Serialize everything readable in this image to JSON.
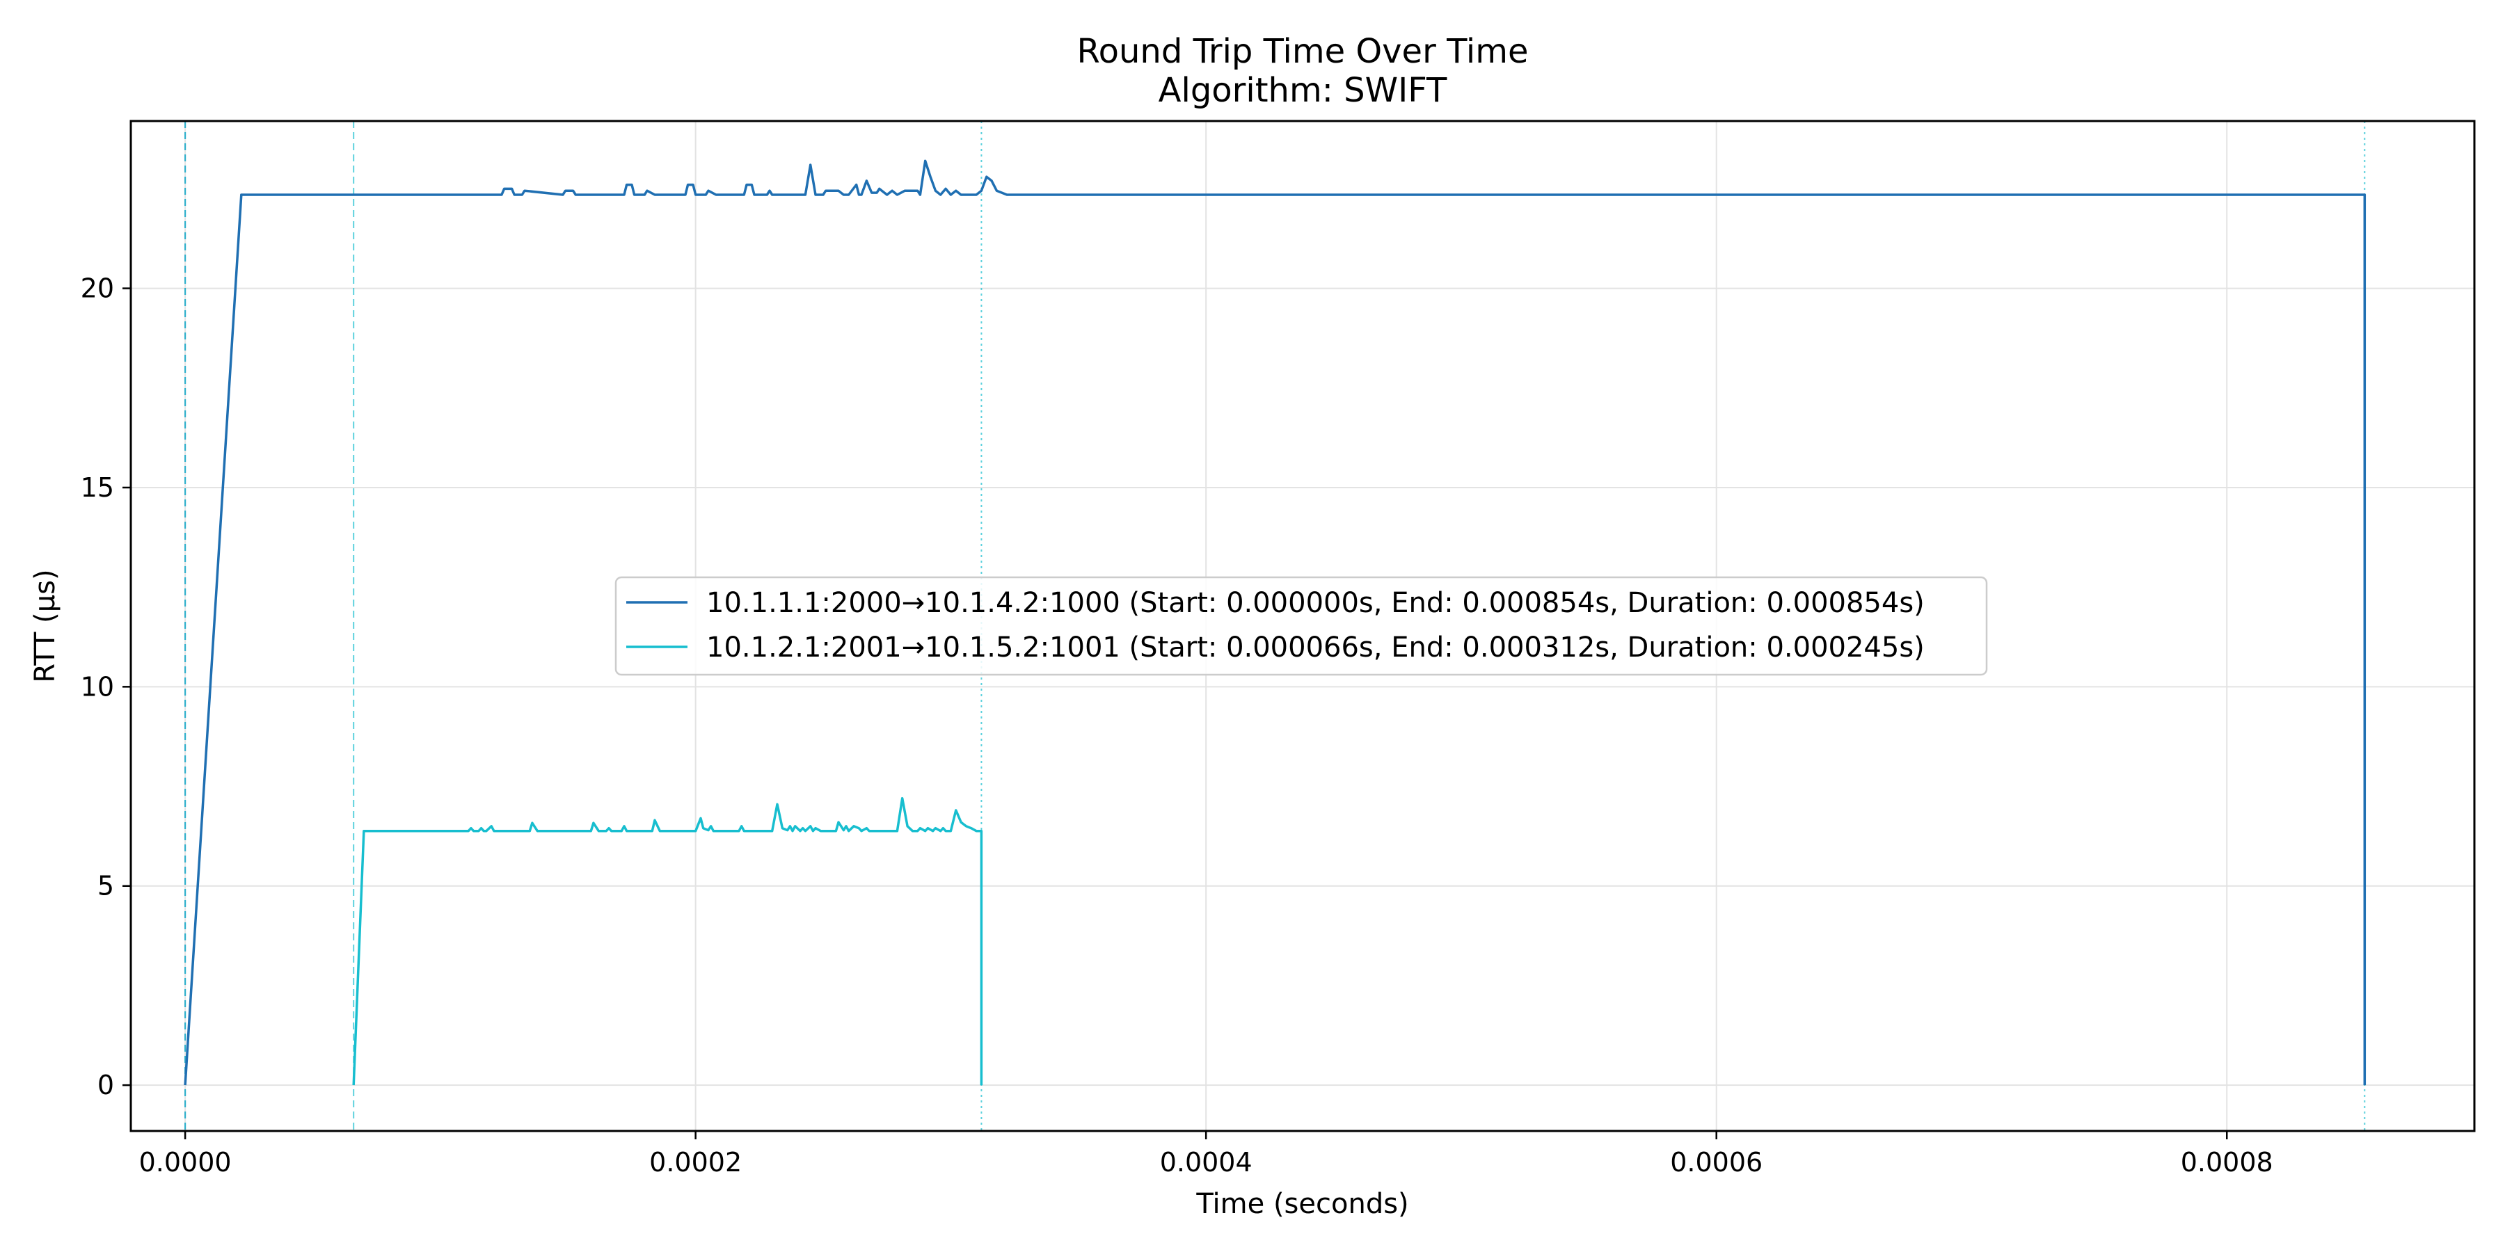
{
  "chart_data": {
    "type": "line",
    "title": "Round Trip Time Over Time",
    "subtitle": "Algorithm: SWIFT",
    "xlabel": "Time (seconds)",
    "ylabel": "RTT (μs)",
    "xlim": [
      -2.13e-05,
      0.000897
    ],
    "ylim": [
      -1.15,
      24.2
    ],
    "x_ticks": [
      0.0,
      0.0002,
      0.0004,
      0.0006,
      0.0008
    ],
    "x_tick_labels": [
      "0.0000",
      "0.0002",
      "0.0004",
      "0.0006",
      "0.0008"
    ],
    "y_ticks": [
      0,
      5,
      10,
      15,
      20
    ],
    "y_tick_labels": [
      "0",
      "5",
      "10",
      "15",
      "20"
    ],
    "grid": true,
    "legend_position": "center",
    "colors": {
      "flow1": "#1f6fb2",
      "flow2": "#17becf",
      "grid": "#e3e3e3"
    },
    "markers": [
      {
        "x": 0.0,
        "style": "dashed",
        "series": 0
      },
      {
        "x": 0.0,
        "style": "dashed",
        "series": 1
      },
      {
        "x": 6.6e-05,
        "style": "dashed",
        "series": 1
      },
      {
        "x": 0.000312,
        "style": "dotted",
        "series": 1
      },
      {
        "x": 0.000854,
        "style": "dotted",
        "series": 1
      }
    ],
    "series": [
      {
        "name": "10.1.1.1:2000→10.1.4.2:1000 (Start: 0.000000s, End: 0.000854s, Duration: 0.000854s)",
        "color": "#1f6fb2",
        "x": [
          0.0,
          2.2e-05,
          0.000124,
          0.000125,
          0.000128,
          0.000129,
          0.000132,
          0.000133,
          0.000148,
          0.000149,
          0.000152,
          0.000153,
          0.000172,
          0.000173,
          0.000175,
          0.000176,
          0.00018,
          0.000181,
          0.000184,
          0.000196,
          0.000197,
          0.000199,
          0.0002,
          0.000204,
          0.000205,
          0.000208,
          0.000219,
          0.00022,
          0.000222,
          0.000223,
          0.000228,
          0.000229,
          0.00023,
          0.000243,
          0.000245,
          0.000247,
          0.00025,
          0.000251,
          0.000256,
          0.000258,
          0.00026,
          0.000263,
          0.000264,
          0.000265,
          0.000267,
          0.000269,
          0.000271,
          0.000272,
          0.000275,
          0.000277,
          0.000279,
          0.000282,
          0.000287,
          0.000288,
          0.00029,
          0.000292,
          0.000294,
          0.000296,
          0.000298,
          0.0003,
          0.000302,
          0.000304,
          0.000306,
          0.000308,
          0.00031,
          0.000312,
          0.000314,
          0.000316,
          0.000318,
          0.00032,
          0.000322,
          0.000324,
          0.000854,
          0.000854
        ],
        "y": [
          0.0,
          22.35,
          22.35,
          22.5,
          22.5,
          22.35,
          22.35,
          22.45,
          22.35,
          22.45,
          22.45,
          22.35,
          22.35,
          22.6,
          22.6,
          22.35,
          22.35,
          22.45,
          22.35,
          22.35,
          22.6,
          22.6,
          22.35,
          22.35,
          22.45,
          22.35,
          22.35,
          22.6,
          22.6,
          22.35,
          22.35,
          22.45,
          22.35,
          22.35,
          23.1,
          22.35,
          22.35,
          22.45,
          22.45,
          22.35,
          22.35,
          22.6,
          22.35,
          22.35,
          22.7,
          22.4,
          22.4,
          22.5,
          22.35,
          22.45,
          22.35,
          22.45,
          22.45,
          22.35,
          23.2,
          22.8,
          22.45,
          22.35,
          22.5,
          22.35,
          22.45,
          22.35,
          22.35,
          22.35,
          22.35,
          22.45,
          22.8,
          22.7,
          22.45,
          22.4,
          22.35,
          22.35,
          22.35,
          0.0
        ]
      },
      {
        "name": "10.1.2.1:2001→10.1.5.2:1001 (Start: 0.000066s, End: 0.000312s, Duration: 0.000245s)",
        "color": "#17becf",
        "x": [
          6.6e-05,
          7e-05,
          0.000111,
          0.000112,
          0.000113,
          0.000115,
          0.000116,
          0.000117,
          0.000118,
          0.00012,
          0.000121,
          0.000124,
          0.000135,
          0.000136,
          0.000138,
          0.000159,
          0.00016,
          0.000162,
          0.000165,
          0.000166,
          0.000167,
          0.000171,
          0.000172,
          0.000173,
          0.000183,
          0.000184,
          0.000186,
          0.0002,
          0.000202,
          0.000203,
          0.000205,
          0.000206,
          0.000207,
          0.000209,
          0.000217,
          0.000218,
          0.000219,
          0.00023,
          0.000232,
          0.000234,
          0.000236,
          0.000237,
          0.000238,
          0.000239,
          0.000241,
          0.000242,
          0.000243,
          0.000245,
          0.000246,
          0.000247,
          0.000249,
          0.000255,
          0.000256,
          0.000258,
          0.000259,
          0.00026,
          0.000262,
          0.000264,
          0.000265,
          0.000267,
          0.000268,
          0.000269,
          0.000271,
          0.000279,
          0.000281,
          0.000283,
          0.000285,
          0.000287,
          0.000288,
          0.00029,
          0.000291,
          0.000293,
          0.000294,
          0.000296,
          0.000297,
          0.000298,
          0.0003,
          0.000302,
          0.000304,
          0.000306,
          0.000308,
          0.00031,
          0.000312,
          0.000312
        ],
        "y": [
          0.0,
          6.38,
          6.38,
          6.45,
          6.38,
          6.38,
          6.45,
          6.38,
          6.38,
          6.5,
          6.38,
          6.38,
          6.38,
          6.58,
          6.38,
          6.38,
          6.58,
          6.38,
          6.38,
          6.45,
          6.38,
          6.38,
          6.5,
          6.38,
          6.38,
          6.65,
          6.38,
          6.38,
          6.7,
          6.45,
          6.4,
          6.5,
          6.38,
          6.38,
          6.38,
          6.5,
          6.38,
          6.38,
          7.05,
          6.45,
          6.4,
          6.5,
          6.38,
          6.5,
          6.38,
          6.45,
          6.38,
          6.5,
          6.38,
          6.45,
          6.38,
          6.38,
          6.6,
          6.4,
          6.5,
          6.38,
          6.5,
          6.45,
          6.38,
          6.45,
          6.38,
          6.38,
          6.38,
          6.38,
          7.2,
          6.5,
          6.38,
          6.38,
          6.45,
          6.38,
          6.45,
          6.38,
          6.45,
          6.38,
          6.45,
          6.38,
          6.38,
          6.9,
          6.6,
          6.5,
          6.45,
          6.38,
          6.38,
          0.0
        ]
      }
    ]
  }
}
